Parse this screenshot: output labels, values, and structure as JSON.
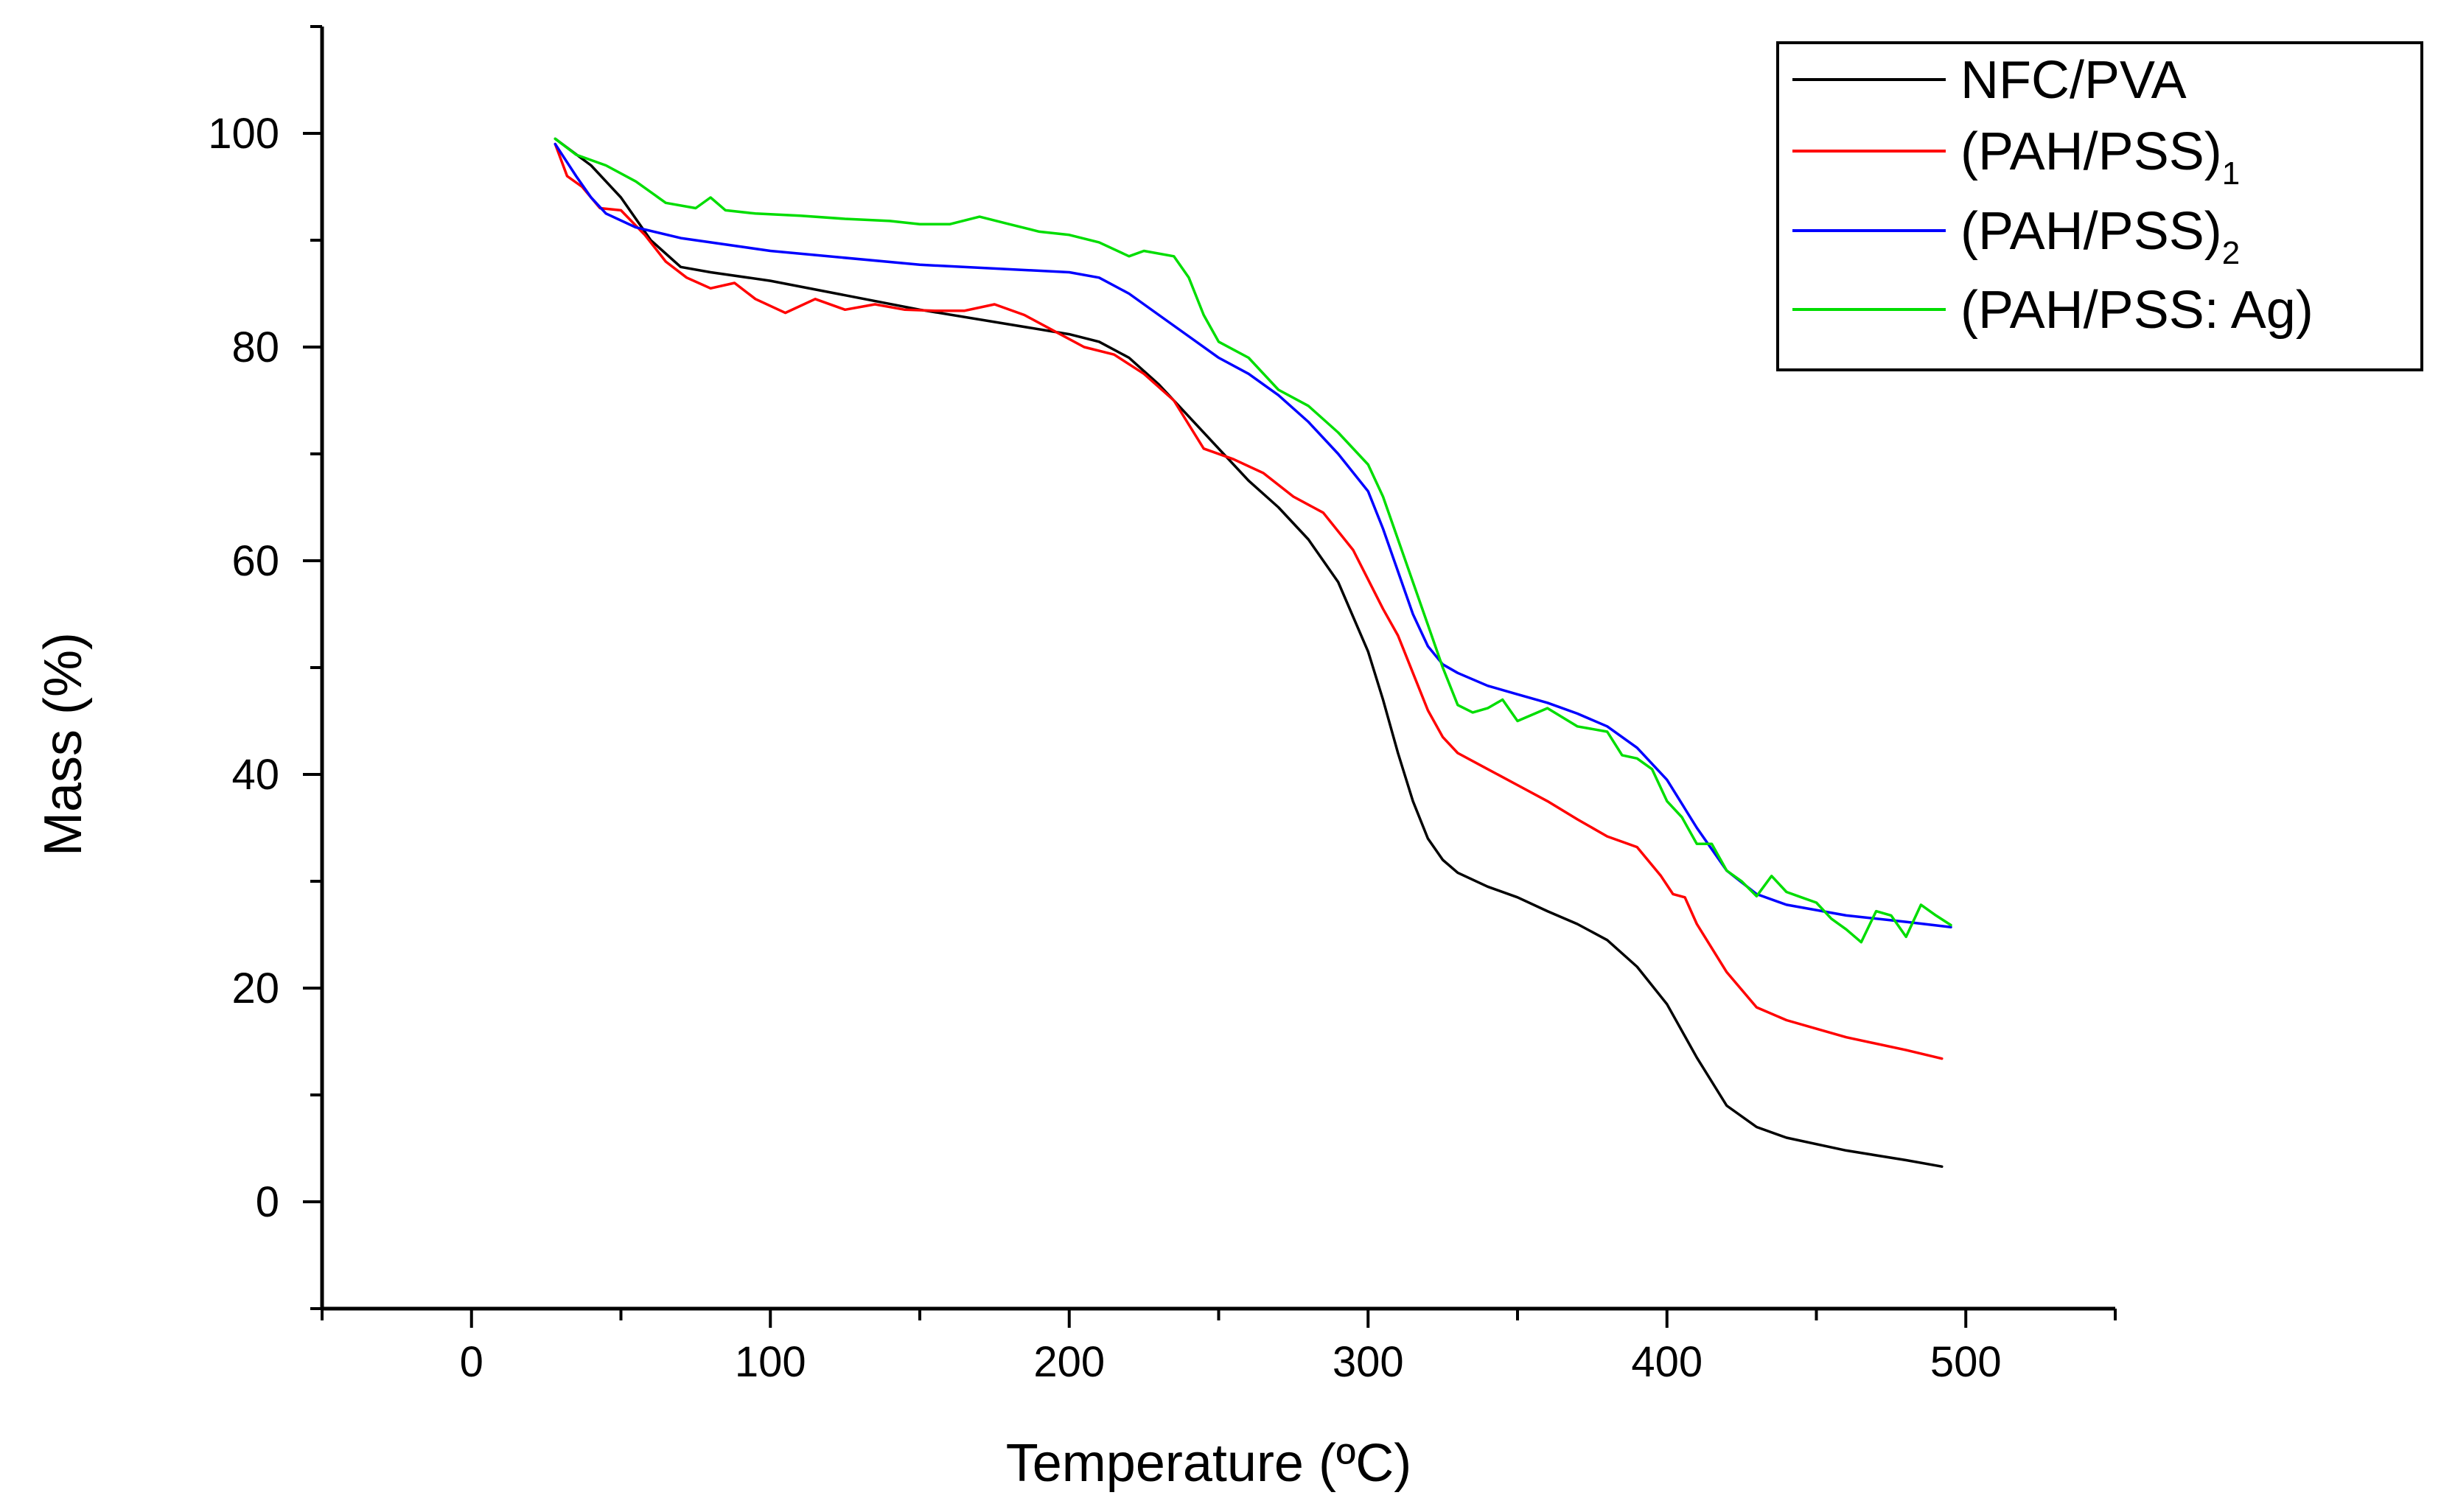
{
  "chart_data": {
    "type": "line",
    "title": "",
    "xlabel": "Temperature (ºC)",
    "ylabel": "Mass (%)",
    "xlim": [
      -50,
      550
    ],
    "ylim": [
      -10,
      110
    ],
    "xticks": [
      0,
      100,
      200,
      300,
      400,
      500
    ],
    "yticks": [
      0,
      20,
      40,
      60,
      80,
      100
    ],
    "grid": false,
    "legend_position": "top-right",
    "series": [
      {
        "name": "NFC/PVA",
        "legend_main": "NFC/PVA",
        "legend_sub": "",
        "color": "#000000",
        "x": [
          28,
          40,
          50,
          60,
          70,
          80,
          100,
          150,
          200,
          210,
          220,
          230,
          240,
          250,
          260,
          270,
          280,
          290,
          300,
          305,
          310,
          315,
          320,
          325,
          330,
          340,
          350,
          360,
          370,
          380,
          390,
          400,
          410,
          420,
          430,
          440,
          460,
          480,
          492
        ],
        "y": [
          99.5,
          97,
          94,
          90,
          87.5,
          87,
          86.2,
          83.5,
          81.2,
          80.5,
          79,
          76.5,
          73.5,
          70.5,
          67.5,
          65,
          62,
          58,
          51.5,
          47,
          42,
          37.5,
          34,
          32,
          30.8,
          29.5,
          28.5,
          27.2,
          26,
          24.5,
          22,
          18.5,
          13.5,
          9,
          7,
          6,
          4.8,
          3.9,
          3.3
        ]
      },
      {
        "name": "(PAH/PSS)1",
        "legend_main": "(PAH/PSS)",
        "legend_sub": "1",
        "color": "#ff0000",
        "x": [
          28,
          32,
          37,
          43,
          50,
          58,
          65,
          72,
          80,
          88,
          95,
          105,
          115,
          125,
          135,
          145,
          155,
          165,
          175,
          185,
          195,
          205,
          215,
          225,
          235,
          245,
          255,
          265,
          275,
          285,
          295,
          305,
          310,
          315,
          320,
          325,
          330,
          340,
          350,
          360,
          370,
          380,
          390,
          398,
          402,
          406,
          410,
          420,
          430,
          440,
          460,
          480,
          492
        ],
        "y": [
          99,
          96,
          95,
          93,
          92.8,
          90.5,
          88,
          86.5,
          85.5,
          86,
          84.5,
          83.2,
          84.5,
          83.5,
          84,
          83.5,
          83.4,
          83.4,
          84,
          83,
          81.5,
          80,
          79.3,
          77.5,
          75,
          70.5,
          69.5,
          68.2,
          66,
          64.5,
          61,
          55.5,
          53,
          49.5,
          46,
          43.5,
          42,
          40.5,
          39,
          37.5,
          35.8,
          34.2,
          33.2,
          30.5,
          28.8,
          28.5,
          26,
          21.5,
          18.2,
          17,
          15.4,
          14.2,
          13.4
        ]
      },
      {
        "name": "(PAH/PSS)2",
        "legend_main": "(PAH/PSS)",
        "legend_sub": "2",
        "color": "#0000ff",
        "x": [
          28,
          35,
          40,
          45,
          55,
          70,
          100,
          150,
          200,
          210,
          220,
          230,
          240,
          250,
          260,
          270,
          280,
          290,
          300,
          305,
          310,
          315,
          320,
          325,
          330,
          340,
          350,
          360,
          370,
          380,
          390,
          400,
          410,
          420,
          430,
          440,
          460,
          480,
          495
        ],
        "y": [
          99,
          96,
          94,
          92.5,
          91.2,
          90.2,
          89,
          87.7,
          87,
          86.5,
          85,
          83,
          81,
          79,
          77.5,
          75.5,
          73,
          70,
          66.5,
          63,
          59,
          55,
          52,
          50.3,
          49.5,
          48.3,
          47.5,
          46.7,
          45.7,
          44.5,
          42.5,
          39.5,
          35,
          31,
          28.8,
          27.8,
          26.8,
          26.2,
          25.7
        ]
      },
      {
        "name": "(PAH/PSS: Ag)",
        "legend_main": "(PAH/PSS: Ag)",
        "legend_sub": "",
        "color": "#00dd00",
        "x": [
          28,
          35,
          45,
          55,
          65,
          75,
          80,
          85,
          95,
          110,
          125,
          140,
          150,
          160,
          170,
          180,
          190,
          200,
          210,
          220,
          225,
          235,
          240,
          245,
          250,
          260,
          270,
          280,
          290,
          300,
          305,
          310,
          315,
          320,
          325,
          330,
          335,
          340,
          345,
          350,
          360,
          370,
          380,
          385,
          390,
          395,
          400,
          405,
          410,
          415,
          420,
          425,
          430,
          435,
          440,
          445,
          450,
          455,
          460,
          465,
          470,
          475,
          480,
          485,
          490,
          495
        ],
        "y": [
          99.5,
          98,
          97,
          95.5,
          93.5,
          93,
          94,
          92.8,
          92.5,
          92.3,
          92,
          91.8,
          91.5,
          91.5,
          92.2,
          91.5,
          90.8,
          90.5,
          89.8,
          88.5,
          89,
          88.5,
          86.5,
          83,
          80.5,
          79,
          76,
          74.5,
          72,
          69,
          66,
          62,
          58,
          54,
          50,
          46.5,
          45.8,
          46.2,
          47,
          45,
          46.2,
          44.5,
          44,
          41.8,
          41.5,
          40.5,
          37.5,
          36,
          33.5,
          33.5,
          31,
          30,
          28.6,
          30.5,
          29,
          28.5,
          28,
          26.5,
          25.5,
          24.3,
          27.2,
          26.8,
          24.8,
          27.8,
          26.8,
          25.9
        ]
      }
    ]
  }
}
